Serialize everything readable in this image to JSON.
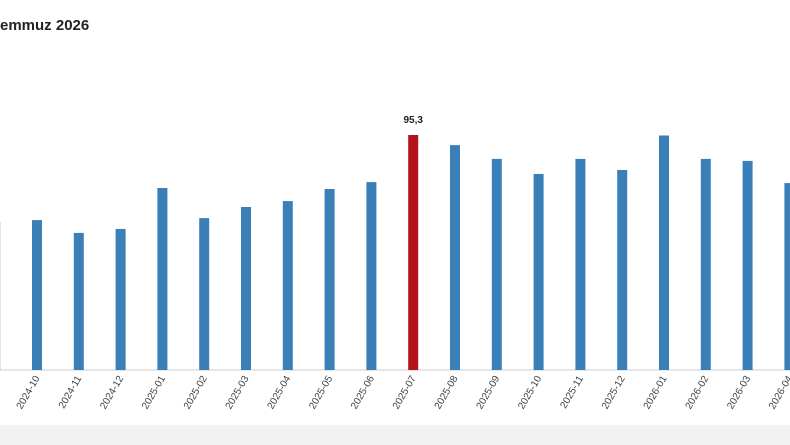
{
  "chart_data": {
    "type": "bar",
    "title": "emmuz 2026",
    "categories": [
      null,
      "2024-10",
      "2024-11",
      "2024-12",
      "2025-01",
      "2025-02",
      "2025-03",
      "2025-04",
      "2025-05",
      "2025-06",
      "2025-07",
      "2025-08",
      "2025-09",
      "2025-10",
      "2025-11",
      "2025-12",
      "2026-01",
      "2026-02",
      "2026-03",
      "2026-04"
    ],
    "values": [
      60.0,
      60.8,
      55.6,
      57.2,
      73.8,
      61.6,
      66.1,
      68.5,
      73.4,
      76.2,
      95.3,
      91.2,
      85.6,
      79.5,
      85.6,
      81.1,
      95.1,
      85.6,
      84.8,
      75.8
    ],
    "value_labels": [
      null,
      null,
      null,
      null,
      null,
      null,
      null,
      null,
      null,
      null,
      "95,3",
      null,
      null,
      null,
      null,
      null,
      null,
      null,
      null,
      null
    ],
    "colors": [
      "#3a7fb8",
      "#3a7fb8",
      "#3a7fb8",
      "#3a7fb8",
      "#3a7fb8",
      "#3a7fb8",
      "#3a7fb8",
      "#3a7fb8",
      "#3a7fb8",
      "#3a7fb8",
      "#b3141c",
      "#3a7fb8",
      "#3a7fb8",
      "#3a7fb8",
      "#3a7fb8",
      "#3a7fb8",
      "#3a7fb8",
      "#3a7fb8",
      "#3a7fb8",
      "#3a7fb8"
    ],
    "ylim": [
      0,
      95.3
    ]
  }
}
